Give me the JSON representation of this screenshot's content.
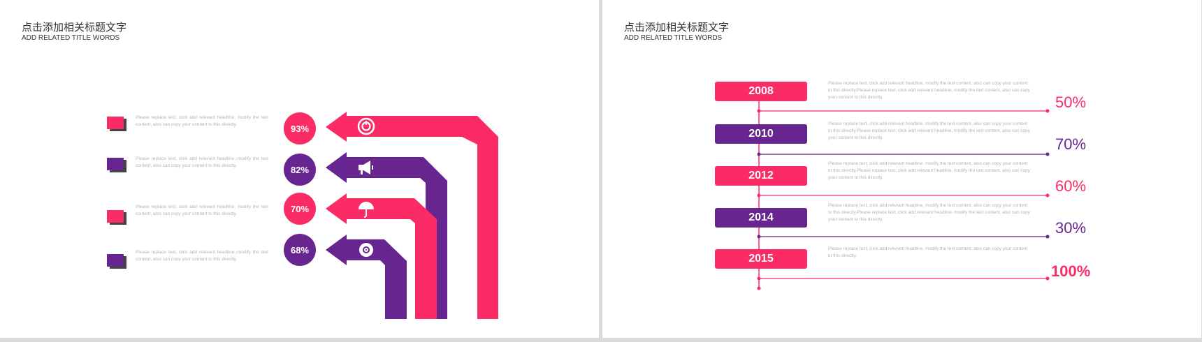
{
  "left_slide": {
    "title_cn": "点击添加相关标题文字",
    "title_en": "ADD RELATED TITLE WORDS",
    "items": [
      {
        "percent": "93%",
        "description": "Please replace text, click add relevant headline, modify the text content, also can copy your content to this directly.",
        "color": "#fb2b66",
        "icon": "power-icon"
      },
      {
        "percent": "82%",
        "description": "Please replace text, click add relevant headline, modify the text content, also can copy your content to this directly.",
        "color": "#67258f",
        "icon": "megaphone-icon"
      },
      {
        "percent": "70%",
        "description": "Please replace text, click add relevant headline, modify the text content, also can copy your content to this directly.",
        "color": "#fb2b66",
        "icon": "umbrella-icon"
      },
      {
        "percent": "68%",
        "description": "Please replace text, click add relevant headline, modify the text content, also can copy your content to this directly.",
        "color": "#67258f",
        "icon": "disc-icon"
      }
    ]
  },
  "right_slide": {
    "title_cn": "点击添加相关标题文字",
    "title_en": "ADD RELATED TITLE WORDS",
    "items": [
      {
        "year": "2008",
        "percent": "50%",
        "description": "Please replace text, click add relevant headline, modify the text content, also can copy your content to this directly.Please replace text, click add relevant headline, modify the text content, also can copy your content to this directly.",
        "color": "#fb2b66"
      },
      {
        "year": "2010",
        "percent": "70%",
        "description": "Please replace text, click add relevant headline, modify the text content, also can copy your content to this directly.Please replace text, click add relevant headline, modify the text content, also can copy your content to this directly.",
        "color": "#67258f"
      },
      {
        "year": "2012",
        "percent": "60%",
        "description": "Please replace text, click add relevant headline, modify the text content, also can copy your content to this directly.Please replace text, click add relevant headline, modify the text content, also can copy your content to this directly.",
        "color": "#fb2b66"
      },
      {
        "year": "2014",
        "percent": "30%",
        "description": "Please replace text, click add relevant headline, modify the text content, also can copy your content to this directly.Please replace text, click add relevant headline, modify the text content, also can copy your content to this directly.",
        "color": "#67258f"
      },
      {
        "year": "2015",
        "percent": "100%",
        "description": "Please replace text, click add relevant headline, modify the text content, also can copy your content to this directly.",
        "color": "#fb2b66"
      }
    ]
  },
  "colors": {
    "pink": "#fb2b66",
    "purple": "#67258f",
    "text_gray": "#b3b3b3"
  }
}
